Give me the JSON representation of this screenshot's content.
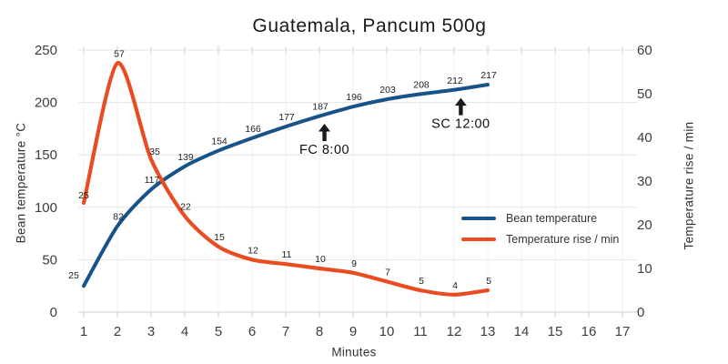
{
  "title": "Guatemala, Pancum 500g",
  "colors": {
    "bean": "#17528a",
    "rise": "#ea4c22",
    "grid_h": "#e6e6e6",
    "grid_v": "#f1f1f1",
    "axis_line": "#d0d0d0",
    "tick_mark": "#cfcfcf",
    "annotation": "#1a1a1a"
  },
  "chart_data": {
    "type": "line",
    "title": "Guatemala, Pancum 500g",
    "xlabel": "Minutes",
    "ylabel_left": "Bean temperature °C",
    "ylabel_right": "Temperature rise / min",
    "x": [
      1,
      2,
      3,
      4,
      5,
      6,
      7,
      8,
      9,
      10,
      11,
      12,
      13
    ],
    "x_ticks": [
      1,
      2,
      3,
      4,
      5,
      6,
      7,
      8,
      9,
      10,
      11,
      12,
      13,
      14,
      15,
      16,
      17
    ],
    "xlim": [
      1,
      17
    ],
    "y_left_ticks": [
      0,
      50,
      100,
      150,
      200,
      250
    ],
    "ylim_left": [
      0,
      250
    ],
    "y_right_ticks": [
      0,
      10,
      20,
      30,
      40,
      50,
      60
    ],
    "ylim_right": [
      0,
      60
    ],
    "grid": true,
    "legend_position": "inside-right",
    "series": [
      {
        "name": "Bean temperature",
        "axis": "left",
        "color_key": "bean",
        "values": [
          25,
          82,
          117,
          139,
          154,
          166,
          177,
          187,
          196,
          203,
          208,
          212,
          217
        ]
      },
      {
        "name": "Temperature rise / min",
        "axis": "right",
        "color_key": "rise",
        "values": [
          25,
          57,
          35,
          22,
          15,
          12,
          11,
          10,
          9,
          7,
          5,
          4,
          5
        ]
      }
    ],
    "annotations": [
      {
        "label": "FC 8:00",
        "minute": 8.15
      },
      {
        "label": "SC 12:00",
        "minute": 12.2
      }
    ]
  }
}
